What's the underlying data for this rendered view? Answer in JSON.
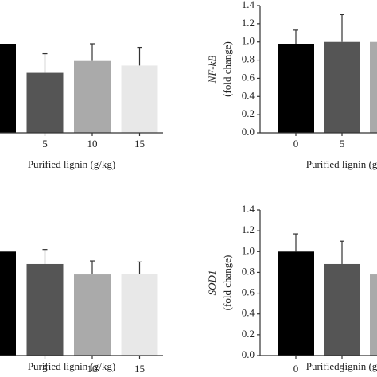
{
  "chart_data": [
    {
      "type": "bar",
      "categories": [
        null,
        "5",
        "10",
        "15"
      ],
      "values": [
        0.98,
        0.66,
        0.79,
        0.74
      ],
      "errors": [
        0,
        0.21,
        0.19,
        0.2
      ],
      "colors": [
        "#000000",
        "#555555",
        "#aaaaaa",
        "#e8e8e8"
      ],
      "xlabel": "Purified lignin (g/kg)",
      "ylim": [
        0,
        1.4
      ]
    },
    {
      "type": "bar",
      "categories": [
        "0",
        "5",
        null
      ],
      "values": [
        0.98,
        1.0,
        1.0
      ],
      "errors": [
        0.15,
        0.3,
        0
      ],
      "colors": [
        "#000000",
        "#555555",
        "#aaaaaa"
      ],
      "xlabel": "Purified lignin (g/kg)",
      "ylabel": [
        "NF-kB",
        "(fold change)"
      ],
      "ylim": [
        0,
        1.4
      ],
      "yticks": [
        {
          "value": 0,
          "label": "0.0"
        },
        0.2,
        0.4,
        0.6,
        0.8,
        {
          "value": 1,
          "label": "1.0"
        },
        1.2,
        1.4
      ]
    },
    {
      "type": "bar",
      "categories": [
        null,
        "5",
        "10",
        "15"
      ],
      "values": [
        1.0,
        0.88,
        0.78,
        0.78
      ],
      "errors": [
        0,
        0.14,
        0.13,
        0.12
      ],
      "colors": [
        "#000000",
        "#555555",
        "#aaaaaa",
        "#e8e8e8"
      ],
      "xlabel": "Purified lignin (g/kg)",
      "ylim": [
        0,
        1.4
      ]
    },
    {
      "type": "bar",
      "categories": [
        "0",
        "5",
        null
      ],
      "values": [
        1.0,
        0.88,
        0.78
      ],
      "errors": [
        0.17,
        0.22,
        0
      ],
      "colors": [
        "#000000",
        "#555555",
        "#aaaaaa"
      ],
      "xlabel": "Purified lignin (g/kg)",
      "ylabel": [
        "SOD1",
        "(fold change)"
      ],
      "ylim": [
        0,
        1.4
      ],
      "yticks": [
        {
          "value": 0,
          "label": "0.0"
        },
        0.2,
        0.4,
        0.6,
        0.8,
        {
          "value": 1,
          "label": "1.0"
        },
        1.2,
        1.4
      ]
    }
  ]
}
